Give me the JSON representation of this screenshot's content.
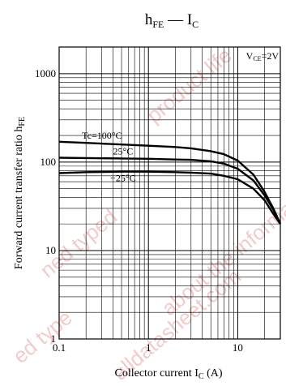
{
  "chart_data": {
    "type": "line",
    "title": {
      "main": "h",
      "main_sub": "FE",
      "dash": " — ",
      "main2": "I",
      "main2_sub": "C"
    },
    "condition": {
      "prefix": "V",
      "sub": "CE",
      "suffix": "=2V"
    },
    "xlabel": {
      "text": "Collector current  I",
      "sub": "C",
      "unit": "  (A)"
    },
    "ylabel": {
      "text": "Forward current transfer ratio  h",
      "sub": "FE"
    },
    "xscale": "log",
    "yscale": "log",
    "xlim": [
      0.1,
      30
    ],
    "ylim": [
      1,
      2000
    ],
    "x_ticks": [
      {
        "value": 0.1,
        "label": "0.1"
      },
      {
        "value": 1,
        "label": "1"
      },
      {
        "value": 10,
        "label": "10"
      }
    ],
    "y_ticks": [
      {
        "value": 1,
        "label": "1"
      },
      {
        "value": 10,
        "label": "10"
      },
      {
        "value": 100,
        "label": "100"
      },
      {
        "value": 1000,
        "label": "1000"
      }
    ],
    "grid": true,
    "series": [
      {
        "name": "Tc=100°C",
        "x": [
          0.1,
          0.2,
          0.5,
          1,
          2,
          3,
          5,
          7,
          10,
          15,
          20,
          25,
          30
        ],
        "y": [
          170,
          165,
          158,
          153,
          148,
          143,
          133,
          123,
          104,
          72,
          46,
          30,
          20
        ]
      },
      {
        "name": "25°C",
        "x": [
          0.1,
          0.2,
          0.5,
          1,
          2,
          3,
          5,
          7,
          10,
          15,
          20,
          25,
          30
        ],
        "y": [
          112,
          111,
          110,
          109,
          107,
          106,
          102,
          96,
          84,
          62,
          42,
          29,
          20
        ]
      },
      {
        "name": "−25°C",
        "x": [
          0.1,
          0.2,
          0.5,
          1,
          2,
          3,
          5,
          7,
          10,
          15,
          20,
          25,
          30
        ],
        "y": [
          75,
          77,
          78,
          78,
          77,
          76,
          74,
          70,
          64,
          50,
          37,
          26,
          20
        ]
      }
    ]
  },
  "watermark": {
    "texts": [
      "product life",
      "ned typed",
      "about the information",
      "ed type",
      "alldatasheet.com"
    ],
    "color": "#e8a2a2"
  }
}
